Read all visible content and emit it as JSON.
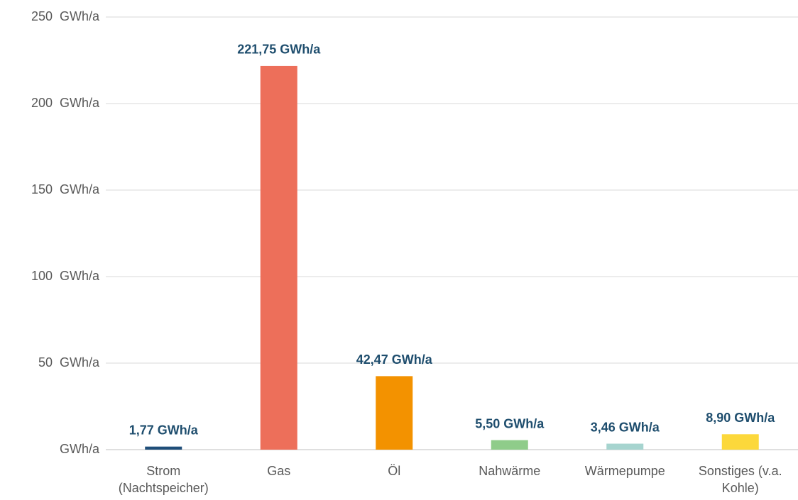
{
  "chart_data": {
    "type": "bar",
    "categories": [
      "Strom (Nachtspeicher)",
      "Gas",
      "Öl",
      "Nahwärme",
      "Wärmepumpe",
      "Sonstiges (v.a. Kohle)"
    ],
    "values": [
      1.77,
      221.75,
      42.47,
      5.5,
      3.46,
      8.9
    ],
    "value_labels": [
      "1,77 GWh/a",
      "221,75 GWh/a",
      "42,47 GWh/a",
      "5,50 GWh/a",
      "3,46 GWh/a",
      "8,90 GWh/a"
    ],
    "colors": [
      "#1f4e79",
      "#ed6f5a",
      "#f39200",
      "#8fcc8a",
      "#a6d4cf",
      "#fcd83b"
    ],
    "ylim": [
      0,
      250
    ],
    "yticks": [
      {
        "value": 0,
        "label": "GWh/a"
      },
      {
        "value": 50,
        "label": "50  GWh/a"
      },
      {
        "value": 100,
        "label": "100  GWh/a"
      },
      {
        "value": 150,
        "label": "150  GWh/a"
      },
      {
        "value": 200,
        "label": "200  GWh/a"
      },
      {
        "value": 250,
        "label": "250  GWh/a"
      }
    ],
    "grid": true
  }
}
